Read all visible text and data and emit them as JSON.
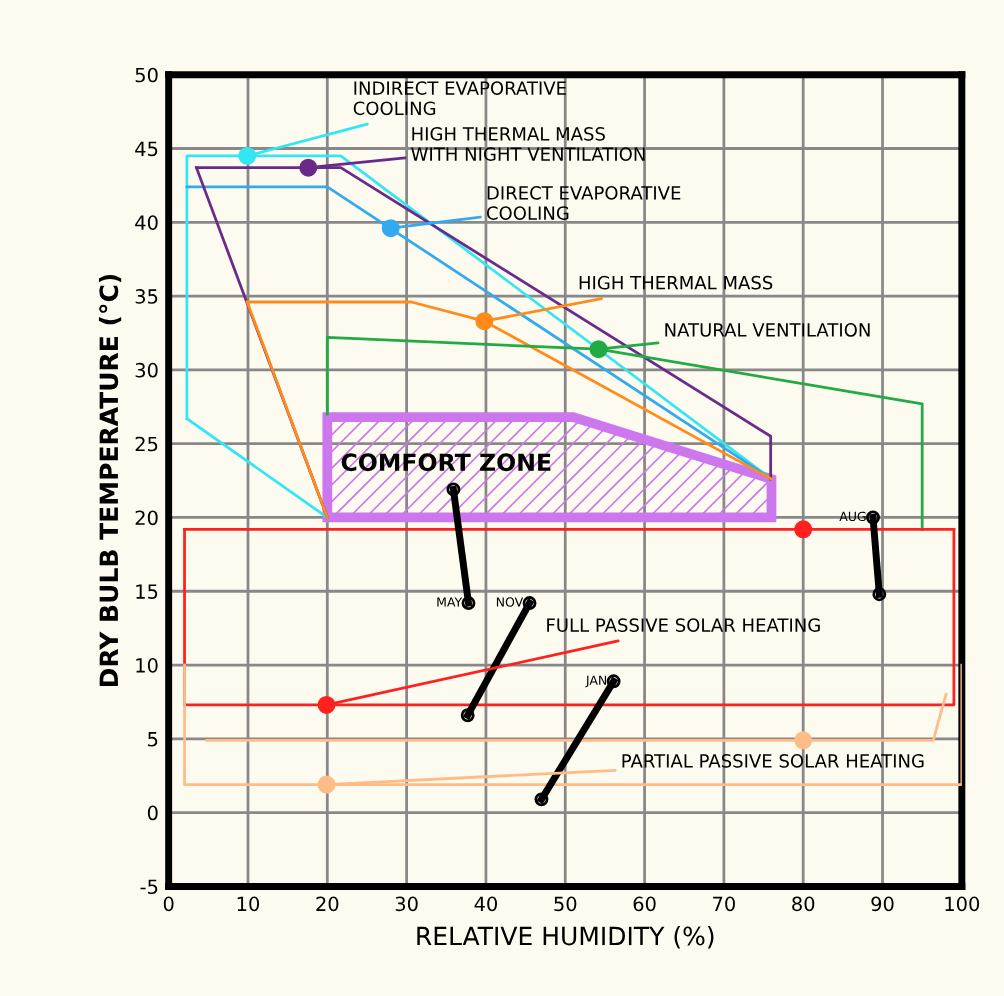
{
  "chart_data": {
    "type": "line",
    "xlabel": "RELATIVE HUMIDITY (%)",
    "ylabel": "DRY BULB TEMPERATURE (°C)",
    "xlim": [
      0,
      100
    ],
    "xticks": [
      0,
      10,
      20,
      30,
      40,
      50,
      60,
      70,
      80,
      90,
      100
    ],
    "ylim": [
      -5,
      50
    ],
    "yticks": [
      -5,
      0,
      5,
      10,
      15,
      20,
      25,
      30,
      35,
      40,
      45,
      50
    ],
    "grid": true,
    "series": [
      {
        "color": "#33e6f2",
        "x": [
          2.3,
          2.3,
          21.7,
          76
        ],
        "values": [
          26.7,
          44.5,
          44.5,
          22.6
        ]
      },
      {
        "color": "#33e6f2",
        "x": [
          2.3,
          20
        ],
        "values": [
          26.7,
          20
        ]
      },
      {
        "color": "#33aaee",
        "x": [
          2.3,
          20,
          76
        ],
        "values": [
          42.4,
          42.4,
          22.6
        ]
      },
      {
        "color": "#6a2a8a",
        "x": [
          3.5,
          21.7,
          75.9,
          75.9
        ],
        "values": [
          43.7,
          43.7,
          25.5,
          22.6
        ]
      },
      {
        "color": "#6a2a8a",
        "x": [
          3.5,
          20
        ],
        "values": [
          43.7,
          20
        ]
      },
      {
        "color": "#ff8c1a",
        "x": [
          9.9,
          30.6,
          39.8,
          76
        ],
        "values": [
          34.6,
          34.6,
          33.3,
          22.6
        ]
      },
      {
        "color": "#ff8c1a",
        "x": [
          9.9,
          20
        ],
        "values": [
          34.6,
          20
        ]
      },
      {
        "color": "#22aa44",
        "x": [
          20,
          20,
          54.2,
          95,
          95
        ],
        "values": [
          27,
          32.2,
          31.4,
          27.7,
          19.2
        ]
      },
      {
        "color": "#ff2020",
        "x": [
          2,
          99
        ],
        "values": [
          19.2,
          19.2
        ]
      },
      {
        "color": "#ff2020",
        "x": [
          2,
          2,
          99,
          99
        ],
        "values": [
          19.2,
          7.3,
          7.3,
          19.2
        ]
      },
      {
        "color": "#ffbb88",
        "x": [
          2,
          2,
          100,
          100
        ],
        "values": [
          10,
          1.9,
          1.9,
          10
        ]
      },
      {
        "color": "#ffbb88",
        "x": [
          4.8,
          96.4,
          98
        ],
        "values": [
          4.9,
          4.9,
          8
        ]
      },
      {
        "type": "area",
        "color": "#cc77ee",
        "x": [
          20,
          20,
          51,
          76,
          76
        ],
        "values": [
          20,
          26.8,
          26.8,
          22.6,
          20
        ]
      },
      {
        "color": "#000000",
        "marker": "circle",
        "x": [
          35.9,
          37.8
        ],
        "values": [
          21.9,
          14.2
        ]
      },
      {
        "color": "#000000",
        "marker": "circle",
        "x": [
          37.7,
          45.5
        ],
        "values": [
          6.6,
          14.2
        ]
      },
      {
        "color": "#000000",
        "marker": "circle",
        "x": [
          47.0,
          56.1
        ],
        "values": [
          0.9,
          8.9
        ]
      },
      {
        "color": "#000000",
        "marker": "circle",
        "x": [
          88.8,
          89.6
        ],
        "values": [
          20.0,
          14.8
        ]
      },
      {
        "type": "scatter",
        "x": [
          9.9,
          17.6,
          28,
          39.8,
          54.2,
          19.9,
          19.9,
          80,
          80
        ],
        "values": [
          44.5,
          43.7,
          39.6,
          33.3,
          31.4,
          7.3,
          1.9,
          19.2,
          4.9
        ],
        "colors": [
          "#33e6f2",
          "#6a2a8a",
          "#33aaee",
          "#ff8c1a",
          "#22aa44",
          "#ff2020",
          "#ffbb88",
          "#ff2020",
          "#ffbb88"
        ]
      }
    ],
    "annotations": [
      {
        "text": "INDIRECT EVAPORATIVE\nCOOLING",
        "x": 9.9,
        "y": 44.5
      },
      {
        "text": "HIGH THERMAL MASS\nWITH NIGHT VENTILATION",
        "x": 17.6,
        "y": 43.7
      },
      {
        "text": "DIRECT EVAPORATIVE\nCOOLING",
        "x": 28,
        "y": 39.6
      },
      {
        "text": "HIGH THERMAL MASS",
        "x": 39.8,
        "y": 33.3
      },
      {
        "text": "NATURAL VENTILATION",
        "x": 54.2,
        "y": 31.4
      },
      {
        "text": "FULL PASSIVE SOLAR HEATING",
        "x": 19.9,
        "y": 7.3
      },
      {
        "text": "PARTIAL PASSIVE SOLAR HEATING",
        "x": 19.9,
        "y": 1.9
      },
      "COMFORT ZONE",
      {
        "text": "MAY",
        "x": 37.8,
        "y": 14.2
      },
      {
        "text": "NOV",
        "x": 45.5,
        "y": 14.2
      },
      {
        "text": "JAN",
        "x": 56.1,
        "y": 8.9
      },
      {
        "text": "AUG",
        "x": 88.8,
        "y": 20.0
      }
    ]
  }
}
